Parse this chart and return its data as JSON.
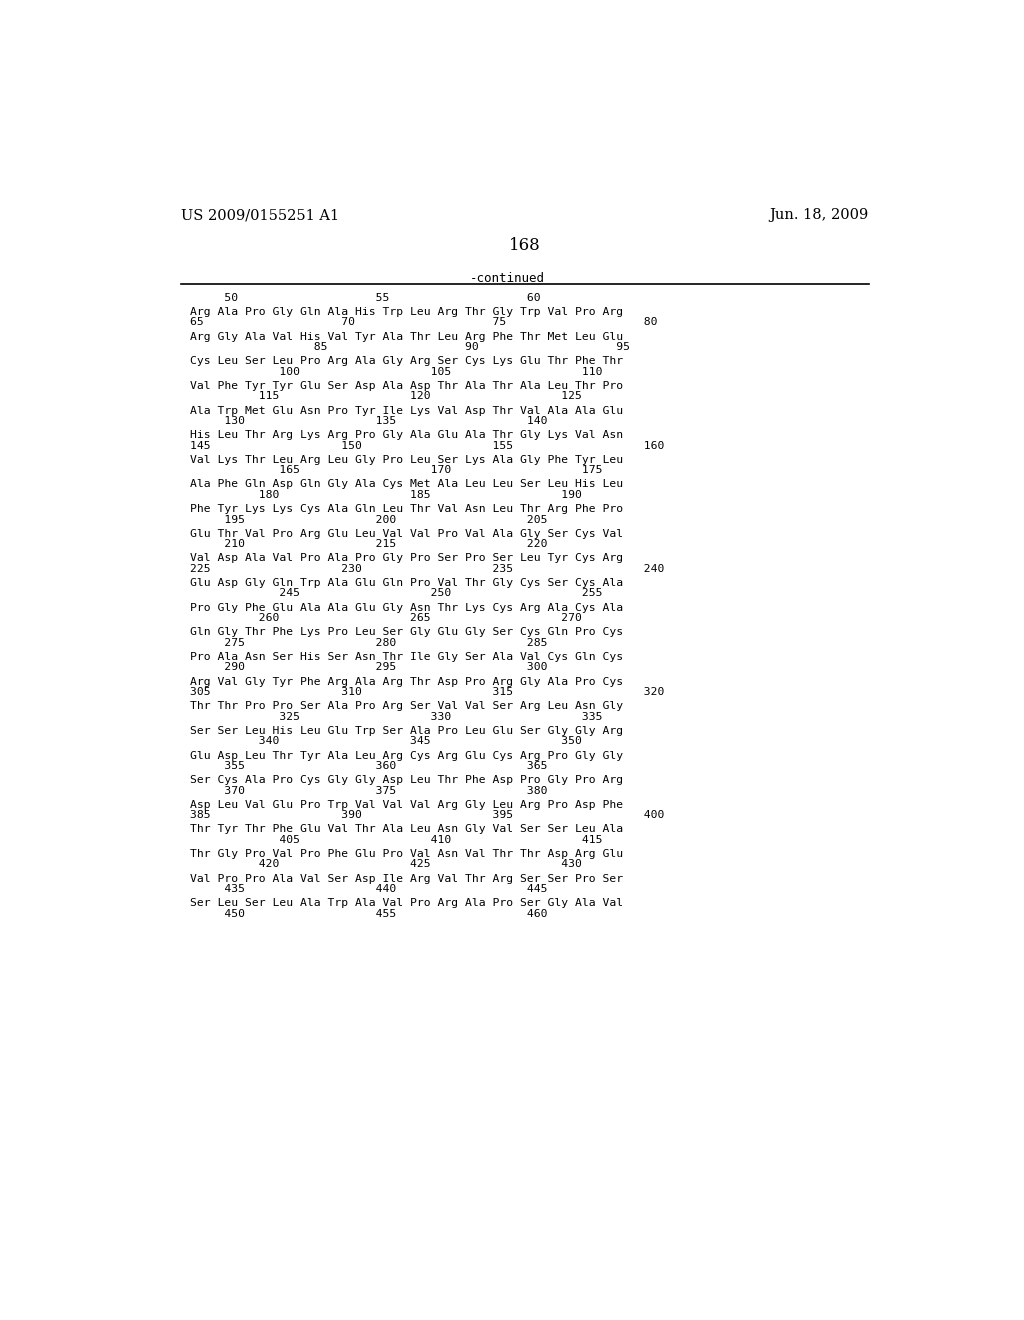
{
  "header_left": "US 2009/0155251 A1",
  "header_right": "Jun. 18, 2009",
  "page_number": "168",
  "continued_label": "-continued",
  "background_color": "#ffffff",
  "text_color": "#000000",
  "ruler_line": "     50                    55                    60",
  "blocks": [
    [
      "Arg Ala Pro Gly Gln Ala His Trp Leu Arg Thr Gly Trp Val Pro Arg",
      "65                    70                    75                    80"
    ],
    [
      "Arg Gly Ala Val His Val Tyr Ala Thr Leu Arg Phe Thr Met Leu Glu",
      "                  85                    90                    95"
    ],
    [
      "Cys Leu Ser Leu Pro Arg Ala Gly Arg Ser Cys Lys Glu Thr Phe Thr",
      "             100                   105                   110"
    ],
    [
      "Val Phe Tyr Tyr Glu Ser Asp Ala Asp Thr Ala Thr Ala Leu Thr Pro",
      "          115                   120                   125"
    ],
    [
      "Ala Trp Met Glu Asn Pro Tyr Ile Lys Val Asp Thr Val Ala Ala Glu",
      "     130                   135                   140"
    ],
    [
      "His Leu Thr Arg Lys Arg Pro Gly Ala Glu Ala Thr Gly Lys Val Asn",
      "145                   150                   155                   160"
    ],
    [
      "Val Lys Thr Leu Arg Leu Gly Pro Leu Ser Lys Ala Gly Phe Tyr Leu",
      "             165                   170                   175"
    ],
    [
      "Ala Phe Gln Asp Gln Gly Ala Cys Met Ala Leu Leu Ser Leu His Leu",
      "          180                   185                   190"
    ],
    [
      "Phe Tyr Lys Lys Cys Ala Gln Leu Thr Val Asn Leu Thr Arg Phe Pro",
      "     195                   200                   205"
    ],
    [
      "Glu Thr Val Pro Arg Glu Leu Val Val Pro Val Ala Gly Ser Cys Val",
      "     210                   215                   220"
    ],
    [
      "Val Asp Ala Val Pro Ala Pro Gly Pro Ser Pro Ser Leu Tyr Cys Arg",
      "225                   230                   235                   240"
    ],
    [
      "Glu Asp Gly Gln Trp Ala Glu Gln Pro Val Thr Gly Cys Ser Cys Ala",
      "             245                   250                   255"
    ],
    [
      "Pro Gly Phe Glu Ala Ala Glu Gly Asn Thr Lys Cys Arg Ala Cys Ala",
      "          260                   265                   270"
    ],
    [
      "Gln Gly Thr Phe Lys Pro Leu Ser Gly Glu Gly Ser Cys Gln Pro Cys",
      "     275                   280                   285"
    ],
    [
      "Pro Ala Asn Ser His Ser Asn Thr Ile Gly Ser Ala Val Cys Gln Cys",
      "     290                   295                   300"
    ],
    [
      "Arg Val Gly Tyr Phe Arg Ala Arg Thr Asp Pro Arg Gly Ala Pro Cys",
      "305                   310                   315                   320"
    ],
    [
      "Thr Thr Pro Pro Ser Ala Pro Arg Ser Val Val Ser Arg Leu Asn Gly",
      "             325                   330                   335"
    ],
    [
      "Ser Ser Leu His Leu Glu Trp Ser Ala Pro Leu Glu Ser Gly Gly Arg",
      "          340                   345                   350"
    ],
    [
      "Glu Asp Leu Thr Tyr Ala Leu Arg Cys Arg Glu Cys Arg Pro Gly Gly",
      "     355                   360                   365"
    ],
    [
      "Ser Cys Ala Pro Cys Gly Gly Asp Leu Thr Phe Asp Pro Gly Pro Arg",
      "     370                   375                   380"
    ],
    [
      "Asp Leu Val Glu Pro Trp Val Val Val Arg Gly Leu Arg Pro Asp Phe",
      "385                   390                   395                   400"
    ],
    [
      "Thr Tyr Thr Phe Glu Val Thr Ala Leu Asn Gly Val Ser Ser Leu Ala",
      "             405                   410                   415"
    ],
    [
      "Thr Gly Pro Val Pro Phe Glu Pro Val Asn Val Thr Thr Asp Arg Glu",
      "          420                   425                   430"
    ],
    [
      "Val Pro Pro Ala Val Ser Asp Ile Arg Val Thr Arg Ser Ser Pro Ser",
      "     435                   440                   445"
    ],
    [
      "Ser Leu Ser Leu Ala Trp Ala Val Pro Arg Ala Pro Ser Gly Ala Val",
      "     450                   455                   460"
    ]
  ]
}
